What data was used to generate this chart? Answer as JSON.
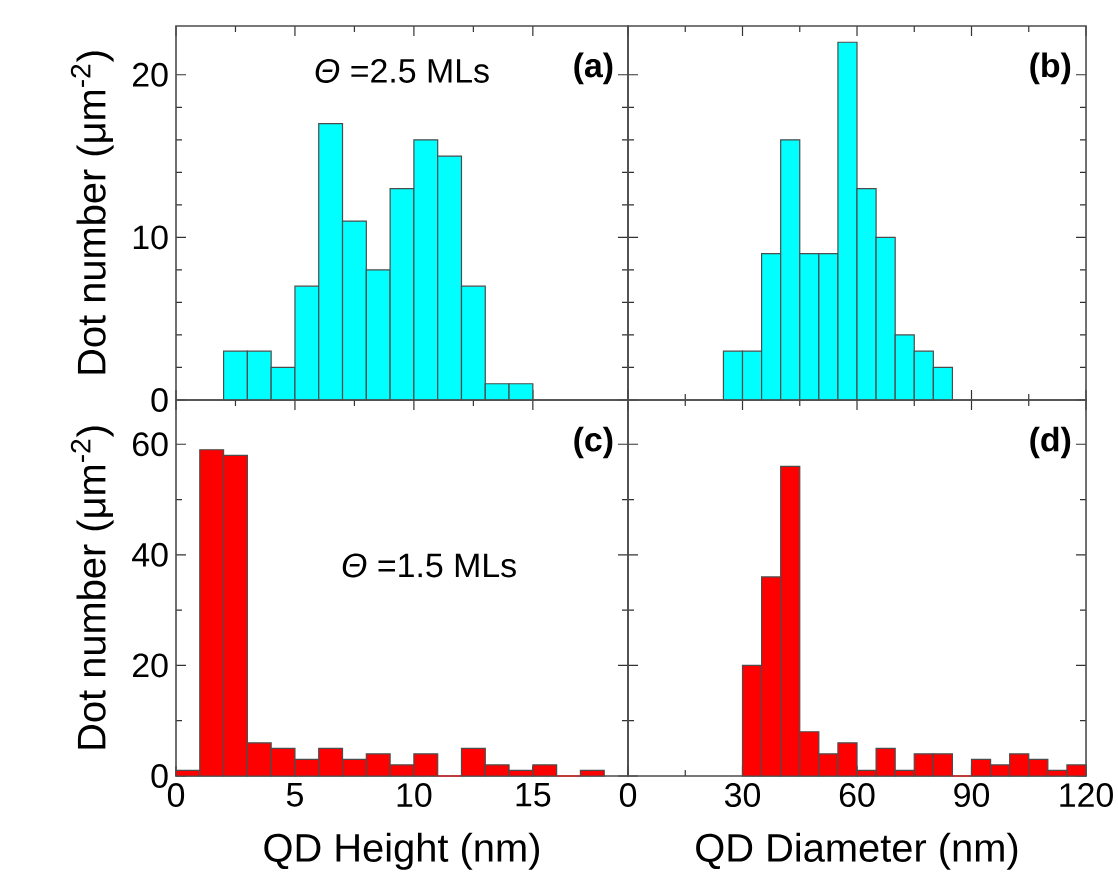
{
  "chart_data": [
    {
      "type": "histogram",
      "ylabel": "Dot number (μm$^{-2}$)",
      "annotations": [
        "(a)",
        "*Θ* =2.5 MLs"
      ],
      "color": "#00ffff",
      "bins": [
        2,
        3,
        4,
        5,
        6,
        7,
        8,
        9,
        10,
        11,
        12,
        13,
        14,
        15
      ],
      "values": [
        3,
        3,
        2,
        7,
        17,
        11,
        8,
        13,
        16,
        15,
        7,
        1,
        1
      ],
      "xlim": [
        0,
        19
      ],
      "xticks": [
        0,
        5,
        10,
        15
      ],
      "ylim": [
        0,
        23
      ],
      "yticks": [
        0,
        10,
        20
      ],
      "tick_labels": "y"
    },
    {
      "type": "histogram",
      "annotations": [
        "(b)"
      ],
      "color": "#00ffff",
      "bins": [
        25,
        30,
        35,
        40,
        45,
        50,
        55,
        60,
        65,
        70,
        75,
        80,
        85
      ],
      "values": [
        3,
        3,
        9,
        16,
        9,
        9,
        22,
        13,
        10,
        4,
        3,
        2
      ],
      "xlim": [
        0,
        120
      ],
      "xticks": [
        0,
        30,
        60,
        90,
        120
      ],
      "ylim": [
        0,
        23
      ],
      "yticks": [
        0,
        10,
        20
      ],
      "tick_labels": false
    },
    {
      "type": "histogram",
      "xlabel": "QD Height (nm)",
      "ylabel": "Dot number (μm$^{-2}$)",
      "annotations": [
        "(c)",
        "*Θ* =1.5 MLs"
      ],
      "color": "#ff0000",
      "bins": [
        0,
        1,
        2,
        3,
        4,
        5,
        6,
        7,
        8,
        9,
        10,
        11,
        12,
        13,
        14,
        15,
        16,
        17,
        18
      ],
      "values": [
        1,
        59,
        58,
        6,
        5,
        3,
        5,
        3,
        4,
        2,
        4,
        0,
        5,
        2,
        1,
        2,
        0,
        1
      ],
      "xlim": [
        0,
        19
      ],
      "xticks": [
        0,
        5,
        10,
        15
      ],
      "ylim": [
        0,
        68
      ],
      "yticks": [
        0,
        20,
        40,
        60
      ]
    },
    {
      "type": "histogram",
      "xlabel": "QD Diameter (nm)",
      "annotations": [
        "(d)"
      ],
      "color": "#ff0000",
      "bins": [
        30,
        35,
        40,
        45,
        50,
        55,
        60,
        65,
        70,
        75,
        80,
        85,
        90,
        95,
        100,
        105,
        110,
        115,
        120
      ],
      "values": [
        20,
        36,
        56,
        8,
        4,
        6,
        1,
        5,
        1,
        4,
        4,
        0,
        3,
        2,
        4,
        3,
        1,
        2
      ],
      "xlim": [
        0,
        120
      ],
      "xticks": [
        0,
        30,
        60,
        90,
        120
      ],
      "ylim": [
        0,
        68
      ],
      "yticks": [
        0,
        20,
        40,
        60
      ],
      "tick_labels": "x"
    }
  ]
}
